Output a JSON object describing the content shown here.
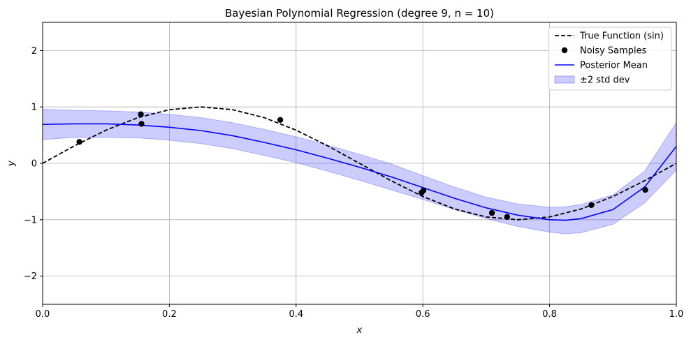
{
  "chart_data": {
    "type": "line",
    "title": "Bayesian Polynomial Regression (degree 9, n = 10)",
    "xlabel": "x",
    "ylabel": "y",
    "xlim": [
      0.0,
      1.0
    ],
    "ylim": [
      -2.5,
      2.5
    ],
    "x_ticks": [
      0.0,
      0.2,
      0.4,
      0.6,
      0.8,
      1.0
    ],
    "x_tick_labels": [
      "0.0",
      "0.2",
      "0.4",
      "0.6",
      "0.8",
      "1.0"
    ],
    "y_ticks": [
      -2,
      -1,
      0,
      1,
      2
    ],
    "y_tick_labels": [
      "−2",
      "−1",
      "0",
      "1",
      "2"
    ],
    "grid": true,
    "legend_position": "top-right",
    "legend": [
      "True Function (sin)",
      "Noisy Samples",
      "Posterior Mean",
      "±2 std dev"
    ],
    "colors": {
      "true_function": "#000000",
      "samples": "#000000",
      "posterior_mean": "#0000ff",
      "band": "#0000ff"
    },
    "series": [
      {
        "name": "True Function (sin)",
        "kind": "dashed-line",
        "x": [
          0.0,
          0.05,
          0.1,
          0.15,
          0.2,
          0.25,
          0.3,
          0.35,
          0.4,
          0.45,
          0.5,
          0.55,
          0.6,
          0.65,
          0.7,
          0.75,
          0.8,
          0.85,
          0.9,
          0.95,
          1.0
        ],
        "y": [
          0.0,
          0.309,
          0.588,
          0.809,
          0.951,
          1.0,
          0.951,
          0.809,
          0.588,
          0.309,
          0.0,
          -0.309,
          -0.588,
          -0.809,
          -0.951,
          -1.0,
          -0.951,
          -0.809,
          -0.588,
          -0.309,
          0.0
        ]
      },
      {
        "name": "Noisy Samples",
        "kind": "scatter",
        "x": [
          0.058,
          0.155,
          0.156,
          0.375,
          0.598,
          0.601,
          0.709,
          0.733,
          0.866,
          0.951
        ],
        "y": [
          0.38,
          0.87,
          0.7,
          0.77,
          -0.52,
          -0.48,
          -0.88,
          -0.95,
          -0.74,
          -0.47
        ]
      },
      {
        "name": "Posterior Mean",
        "kind": "line",
        "x": [
          0.0,
          0.05,
          0.1,
          0.15,
          0.2,
          0.25,
          0.3,
          0.35,
          0.4,
          0.45,
          0.5,
          0.55,
          0.6,
          0.65,
          0.7,
          0.75,
          0.8,
          0.825,
          0.85,
          0.9,
          0.95,
          1.0
        ],
        "y": [
          0.69,
          0.7,
          0.7,
          0.68,
          0.64,
          0.58,
          0.49,
          0.37,
          0.24,
          0.09,
          -0.07,
          -0.24,
          -0.43,
          -0.62,
          -0.79,
          -0.92,
          -1.0,
          -1.01,
          -0.98,
          -0.82,
          -0.42,
          0.3
        ]
      },
      {
        "name": "±2 std dev",
        "kind": "band",
        "x": [
          0.0,
          0.05,
          0.1,
          0.15,
          0.2,
          0.25,
          0.3,
          0.35,
          0.4,
          0.45,
          0.5,
          0.55,
          0.6,
          0.65,
          0.7,
          0.75,
          0.8,
          0.825,
          0.85,
          0.9,
          0.95,
          1.0
        ],
        "lower": [
          0.42,
          0.46,
          0.46,
          0.45,
          0.41,
          0.35,
          0.26,
          0.14,
          0.01,
          -0.14,
          -0.3,
          -0.47,
          -0.64,
          -0.82,
          -0.98,
          -1.12,
          -1.22,
          -1.25,
          -1.23,
          -1.08,
          -0.7,
          -0.12
        ],
        "upper": [
          0.96,
          0.94,
          0.93,
          0.91,
          0.87,
          0.81,
          0.72,
          0.6,
          0.47,
          0.32,
          0.16,
          -0.01,
          -0.22,
          -0.42,
          -0.6,
          -0.72,
          -0.78,
          -0.77,
          -0.73,
          -0.56,
          -0.14,
          0.72
        ]
      }
    ]
  }
}
